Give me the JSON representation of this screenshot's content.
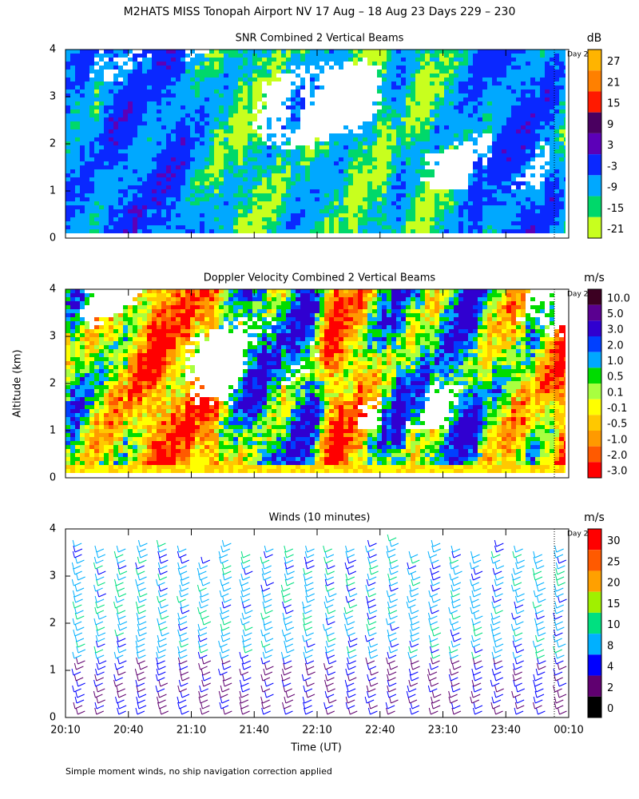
{
  "title": "M2HATS MISS Tonopah Airport NV  17 Aug – 18 Aug 23 Days 229 – 230",
  "y_axis_label": "Altitude (km)",
  "footnote": "Simple moment winds, no ship navigation correction applied",
  "chart_data": [
    {
      "type": "heatmap",
      "title": "SNR Combined 2 Vertical Beams",
      "unit": "dB",
      "annotation": "Day 2",
      "ylim": [
        0,
        4
      ],
      "yticks": [
        0,
        1,
        2,
        3,
        4
      ],
      "levels": [
        27,
        21,
        15,
        9,
        3,
        -3,
        -9,
        -15,
        -21
      ],
      "colors": [
        "#ffb400",
        "#ff8000",
        "#ff1a00",
        "#4a0060",
        "#5c00b8",
        "#0a28ff",
        "#00a8ff",
        "#00d86a",
        "#c8ff1e"
      ]
    },
    {
      "type": "heatmap",
      "title": "Doppler Velocity Combined 2 Vertical Beams",
      "unit": "m/s",
      "annotation": "Day 2",
      "ylim": [
        0,
        4
      ],
      "yticks": [
        0,
        1,
        2,
        3,
        4
      ],
      "levels": [
        {
          "value": 10,
          "label": "10.0"
        },
        {
          "value": 5,
          "label": "5.0"
        },
        {
          "value": 3,
          "label": "3.0"
        },
        {
          "value": 2,
          "label": "2.0"
        },
        {
          "value": 1,
          "label": "1.0"
        },
        {
          "value": 0.5,
          "label": "0.5"
        },
        {
          "value": 0.1,
          "label": "0.1"
        },
        {
          "value": -0.1,
          "label": "-0.1"
        },
        {
          "value": -0.5,
          "label": "-0.5"
        },
        {
          "value": -1,
          "label": "-1.0"
        },
        {
          "value": -2,
          "label": "-2.0"
        },
        {
          "value": -3,
          "label": "-3.0"
        }
      ],
      "colors": [
        "#3c0022",
        "#5a0090",
        "#3000d0",
        "#0040ff",
        "#00a8ff",
        "#00dc00",
        "#a8ff40",
        "#ffff00",
        "#ffc800",
        "#ff9a00",
        "#ff5a00",
        "#ff0000"
      ]
    },
    {
      "type": "barbs",
      "title": "Winds (10 minutes)",
      "unit": "m/s",
      "annotation": "Day 2",
      "ylim": [
        0,
        4
      ],
      "yticks": [
        0,
        1,
        2,
        3,
        4
      ],
      "xticks": [
        "20:10",
        "20:40",
        "21:10",
        "21:40",
        "22:10",
        "22:40",
        "23:10",
        "23:40",
        "00:10"
      ],
      "x_label": "Time (UT)",
      "levels": [
        30,
        25,
        20,
        15,
        10,
        8,
        4,
        2,
        0
      ],
      "colors": [
        "#ff0000",
        "#ff5a00",
        "#ffa000",
        "#a0f000",
        "#00e080",
        "#00b0ff",
        "#0000ff",
        "#600070",
        "#000000"
      ]
    }
  ]
}
